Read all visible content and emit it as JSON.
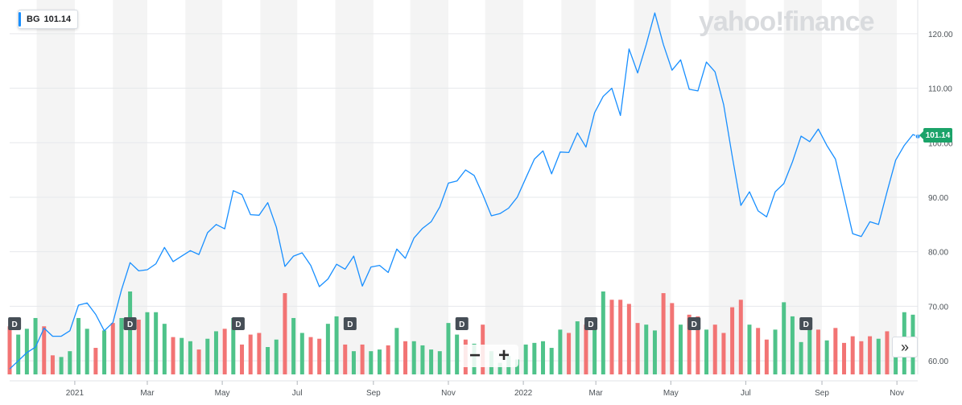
{
  "ticker": {
    "symbol": "BG",
    "price": "101.14"
  },
  "watermark": "yahoo!finance",
  "controls": {
    "zoom_out": "−",
    "zoom_in": "+",
    "expand": "»"
  },
  "colors": {
    "line": "#188fff",
    "volume_up": "#4fc38a",
    "volume_down": "#f27474",
    "price_tag": "#1ba369",
    "shade": "#f4f4f4"
  },
  "chart_data": {
    "type": "line",
    "title": "",
    "xlabel": "",
    "ylabel": "",
    "ylim": [
      57.5,
      125
    ],
    "y_ticks": [
      "60.00",
      "70.00",
      "80.00",
      "90.00",
      "100.00",
      "110.00",
      "120.00"
    ],
    "y_tick_values": [
      60,
      70,
      80,
      90,
      100,
      110,
      120
    ],
    "x_ticks": [
      {
        "label": "2021",
        "date": "2021-01-01"
      },
      {
        "label": "Mar",
        "date": "2021-03-01"
      },
      {
        "label": "May",
        "date": "2021-05-01"
      },
      {
        "label": "Jul",
        "date": "2021-07-01"
      },
      {
        "label": "Sep",
        "date": "2021-09-01"
      },
      {
        "label": "Nov",
        "date": "2021-11-01"
      },
      {
        "label": "2022",
        "date": "2022-01-01"
      },
      {
        "label": "Mar",
        "date": "2022-03-01"
      },
      {
        "label": "May",
        "date": "2022-05-01"
      },
      {
        "label": "Jul",
        "date": "2022-07-01"
      },
      {
        "label": "Sep",
        "date": "2022-09-01"
      },
      {
        "label": "Nov",
        "date": "2022-11-01"
      }
    ],
    "x_range": [
      "2020-11-09",
      "2022-11-14"
    ],
    "series": [
      {
        "values": [
          [
            "2020-11-09",
            58.5
          ],
          [
            "2020-11-16",
            60.0
          ],
          [
            "2020-11-23",
            61.5
          ],
          [
            "2020-11-30",
            62.5
          ],
          [
            "2020-12-07",
            66.0
          ],
          [
            "2020-12-14",
            64.5
          ],
          [
            "2020-12-21",
            64.5
          ],
          [
            "2020-12-28",
            65.5
          ],
          [
            "2021-01-04",
            70.2
          ],
          [
            "2021-01-11",
            70.6
          ],
          [
            "2021-01-18",
            68.5
          ],
          [
            "2021-01-25",
            65.5
          ],
          [
            "2021-02-01",
            67.0
          ],
          [
            "2021-02-08",
            73.0
          ],
          [
            "2021-02-15",
            78.0
          ],
          [
            "2021-02-22",
            76.5
          ],
          [
            "2021-03-01",
            76.7
          ],
          [
            "2021-03-08",
            77.8
          ],
          [
            "2021-03-15",
            80.8
          ],
          [
            "2021-03-22",
            78.2
          ],
          [
            "2021-03-29",
            79.2
          ],
          [
            "2021-04-05",
            80.2
          ],
          [
            "2021-04-12",
            79.5
          ],
          [
            "2021-04-19",
            83.5
          ],
          [
            "2021-04-26",
            85.0
          ],
          [
            "2021-05-03",
            84.2
          ],
          [
            "2021-05-10",
            91.2
          ],
          [
            "2021-05-17",
            90.5
          ],
          [
            "2021-05-24",
            86.8
          ],
          [
            "2021-05-31",
            86.7
          ],
          [
            "2021-06-07",
            89.0
          ],
          [
            "2021-06-14",
            84.5
          ],
          [
            "2021-06-21",
            77.3
          ],
          [
            "2021-06-28",
            79.2
          ],
          [
            "2021-07-05",
            79.8
          ],
          [
            "2021-07-12",
            77.5
          ],
          [
            "2021-07-19",
            73.6
          ],
          [
            "2021-07-26",
            75.0
          ],
          [
            "2021-08-02",
            77.7
          ],
          [
            "2021-08-09",
            76.8
          ],
          [
            "2021-08-16",
            79.2
          ],
          [
            "2021-08-23",
            73.7
          ],
          [
            "2021-08-30",
            77.2
          ],
          [
            "2021-09-06",
            77.5
          ],
          [
            "2021-09-13",
            76.2
          ],
          [
            "2021-09-20",
            80.5
          ],
          [
            "2021-09-27",
            78.8
          ],
          [
            "2021-10-04",
            82.5
          ],
          [
            "2021-10-11",
            84.3
          ],
          [
            "2021-10-18",
            85.5
          ],
          [
            "2021-10-25",
            88.2
          ],
          [
            "2021-11-01",
            92.6
          ],
          [
            "2021-11-08",
            93.0
          ],
          [
            "2021-11-15",
            95.0
          ],
          [
            "2021-11-22",
            94.0
          ],
          [
            "2021-11-29",
            90.5
          ],
          [
            "2021-12-06",
            86.6
          ],
          [
            "2021-12-13",
            87.0
          ],
          [
            "2021-12-20",
            88.0
          ],
          [
            "2021-12-27",
            90.0
          ],
          [
            "2022-01-03",
            93.5
          ],
          [
            "2022-01-10",
            97.0
          ],
          [
            "2022-01-17",
            98.5
          ],
          [
            "2022-01-24",
            94.3
          ],
          [
            "2022-01-31",
            98.3
          ],
          [
            "2022-02-07",
            98.2
          ],
          [
            "2022-02-14",
            101.8
          ],
          [
            "2022-02-21",
            99.2
          ],
          [
            "2022-02-28",
            105.5
          ],
          [
            "2022-03-07",
            108.5
          ],
          [
            "2022-03-14",
            110.0
          ],
          [
            "2022-03-21",
            105.0
          ],
          [
            "2022-03-28",
            117.2
          ],
          [
            "2022-04-04",
            112.8
          ],
          [
            "2022-04-11",
            118.0
          ],
          [
            "2022-04-18",
            123.8
          ],
          [
            "2022-04-25",
            118.0
          ],
          [
            "2022-05-02",
            113.3
          ],
          [
            "2022-05-09",
            115.2
          ],
          [
            "2022-05-16",
            109.8
          ],
          [
            "2022-05-23",
            109.5
          ],
          [
            "2022-05-30",
            114.8
          ],
          [
            "2022-06-06",
            113.0
          ],
          [
            "2022-06-13",
            107.0
          ],
          [
            "2022-06-20",
            97.5
          ],
          [
            "2022-06-27",
            88.5
          ],
          [
            "2022-07-04",
            91.0
          ],
          [
            "2022-07-11",
            87.5
          ],
          [
            "2022-07-18",
            86.4
          ],
          [
            "2022-07-25",
            91.0
          ],
          [
            "2022-08-01",
            92.5
          ],
          [
            "2022-08-08",
            96.5
          ],
          [
            "2022-08-15",
            101.2
          ],
          [
            "2022-08-22",
            100.2
          ],
          [
            "2022-08-29",
            102.5
          ],
          [
            "2022-09-05",
            99.5
          ],
          [
            "2022-09-12",
            97.0
          ],
          [
            "2022-09-19",
            90.2
          ],
          [
            "2022-09-26",
            83.3
          ],
          [
            "2022-10-03",
            82.8
          ],
          [
            "2022-10-10",
            85.5
          ],
          [
            "2022-10-17",
            85.0
          ],
          [
            "2022-10-24",
            91.0
          ],
          [
            "2022-10-31",
            96.8
          ],
          [
            "2022-11-07",
            99.5
          ],
          [
            "2022-11-14",
            101.5
          ],
          [
            "2022-11-18",
            101.14
          ]
        ]
      }
    ],
    "volume": {
      "scale": [
        0,
        100
      ],
      "bars": [
        [
          "2020-11-09",
          58,
          "down"
        ],
        [
          "2020-11-16",
          48,
          "up"
        ],
        [
          "2020-11-23",
          55,
          "up"
        ],
        [
          "2020-11-30",
          68,
          "up"
        ],
        [
          "2020-12-07",
          58,
          "down"
        ],
        [
          "2020-12-14",
          23,
          "down"
        ],
        [
          "2020-12-21",
          21,
          "up"
        ],
        [
          "2020-12-28",
          28,
          "up"
        ],
        [
          "2021-01-04",
          68,
          "up"
        ],
        [
          "2021-01-11",
          55,
          "up"
        ],
        [
          "2021-01-18",
          32,
          "down"
        ],
        [
          "2021-01-25",
          53,
          "up"
        ],
        [
          "2021-02-01",
          62,
          "down"
        ],
        [
          "2021-02-08",
          68,
          "up"
        ],
        [
          "2021-02-15",
          100,
          "up"
        ],
        [
          "2021-02-22",
          66,
          "down"
        ],
        [
          "2021-03-01",
          75,
          "up"
        ],
        [
          "2021-03-08",
          75,
          "up"
        ],
        [
          "2021-03-15",
          61,
          "up"
        ],
        [
          "2021-03-22",
          45,
          "down"
        ],
        [
          "2021-03-29",
          44,
          "up"
        ],
        [
          "2021-04-05",
          40,
          "up"
        ],
        [
          "2021-04-12",
          30,
          "down"
        ],
        [
          "2021-04-19",
          43,
          "up"
        ],
        [
          "2021-04-26",
          52,
          "up"
        ],
        [
          "2021-05-03",
          55,
          "down"
        ],
        [
          "2021-05-10",
          68,
          "up"
        ],
        [
          "2021-05-17",
          36,
          "down"
        ],
        [
          "2021-05-24",
          48,
          "down"
        ],
        [
          "2021-05-31",
          50,
          "down"
        ],
        [
          "2021-06-07",
          33,
          "up"
        ],
        [
          "2021-06-14",
          42,
          "up"
        ],
        [
          "2021-06-21",
          98,
          "down"
        ],
        [
          "2021-06-28",
          68,
          "up"
        ],
        [
          "2021-07-05",
          50,
          "up"
        ],
        [
          "2021-07-12",
          45,
          "down"
        ],
        [
          "2021-07-19",
          43,
          "down"
        ],
        [
          "2021-07-26",
          61,
          "up"
        ],
        [
          "2021-08-02",
          70,
          "up"
        ],
        [
          "2021-08-09",
          36,
          "down"
        ],
        [
          "2021-08-16",
          28,
          "up"
        ],
        [
          "2021-08-23",
          36,
          "down"
        ],
        [
          "2021-08-30",
          28,
          "up"
        ],
        [
          "2021-09-06",
          30,
          "up"
        ],
        [
          "2021-09-13",
          35,
          "down"
        ],
        [
          "2021-09-20",
          56,
          "up"
        ],
        [
          "2021-09-27",
          40,
          "down"
        ],
        [
          "2021-10-04",
          40,
          "up"
        ],
        [
          "2021-10-11",
          35,
          "up"
        ],
        [
          "2021-10-18",
          30,
          "up"
        ],
        [
          "2021-10-25",
          28,
          "up"
        ],
        [
          "2021-11-01",
          62,
          "up"
        ],
        [
          "2021-11-08",
          48,
          "up"
        ],
        [
          "2021-11-15",
          42,
          "down"
        ],
        [
          "2021-11-22",
          37,
          "up"
        ],
        [
          "2021-11-29",
          60,
          "down"
        ],
        [
          "2021-12-06",
          28,
          "up"
        ],
        [
          "2021-12-13",
          14,
          "up"
        ],
        [
          "2021-12-20",
          22,
          "up"
        ],
        [
          "2021-12-27",
          18,
          "up"
        ],
        [
          "2022-01-03",
          36,
          "up"
        ],
        [
          "2022-01-10",
          38,
          "up"
        ],
        [
          "2022-01-17",
          40,
          "up"
        ],
        [
          "2022-01-24",
          32,
          "up"
        ],
        [
          "2022-01-31",
          54,
          "up"
        ],
        [
          "2022-02-07",
          50,
          "down"
        ],
        [
          "2022-02-14",
          64,
          "up"
        ],
        [
          "2022-02-21",
          60,
          "down"
        ],
        [
          "2022-02-28",
          58,
          "up"
        ],
        [
          "2022-03-07",
          100,
          "up"
        ],
        [
          "2022-03-14",
          90,
          "down"
        ],
        [
          "2022-03-21",
          90,
          "down"
        ],
        [
          "2022-03-28",
          85,
          "down"
        ],
        [
          "2022-04-04",
          62,
          "down"
        ],
        [
          "2022-04-11",
          60,
          "up"
        ],
        [
          "2022-04-18",
          53,
          "up"
        ],
        [
          "2022-04-25",
          98,
          "down"
        ],
        [
          "2022-05-02",
          86,
          "down"
        ],
        [
          "2022-05-09",
          60,
          "up"
        ],
        [
          "2022-05-16",
          72,
          "down"
        ],
        [
          "2022-05-23",
          70,
          "down"
        ],
        [
          "2022-05-30",
          54,
          "up"
        ],
        [
          "2022-06-06",
          60,
          "down"
        ],
        [
          "2022-06-13",
          50,
          "down"
        ],
        [
          "2022-06-20",
          81,
          "down"
        ],
        [
          "2022-06-27",
          90,
          "down"
        ],
        [
          "2022-07-04",
          60,
          "up"
        ],
        [
          "2022-07-11",
          56,
          "down"
        ],
        [
          "2022-07-18",
          42,
          "down"
        ],
        [
          "2022-07-25",
          54,
          "up"
        ],
        [
          "2022-08-01",
          87,
          "up"
        ],
        [
          "2022-08-08",
          70,
          "up"
        ],
        [
          "2022-08-15",
          39,
          "up"
        ],
        [
          "2022-08-22",
          64,
          "up"
        ],
        [
          "2022-08-29",
          54,
          "down"
        ],
        [
          "2022-09-05",
          41,
          "up"
        ],
        [
          "2022-09-12",
          56,
          "down"
        ],
        [
          "2022-09-19",
          38,
          "down"
        ],
        [
          "2022-09-26",
          46,
          "down"
        ],
        [
          "2022-10-03",
          40,
          "down"
        ],
        [
          "2022-10-10",
          46,
          "down"
        ],
        [
          "2022-10-17",
          43,
          "up"
        ],
        [
          "2022-10-24",
          52,
          "down"
        ],
        [
          "2022-10-31",
          42,
          "up"
        ],
        [
          "2022-11-07",
          75,
          "up"
        ],
        [
          "2022-11-14",
          72,
          "up"
        ]
      ]
    },
    "dividend_markers": {
      "label": "D",
      "dates": [
        "2020-11-13",
        "2021-02-15",
        "2021-05-14",
        "2021-08-13",
        "2021-11-12",
        "2022-02-25",
        "2022-05-20",
        "2022-08-19"
      ]
    },
    "grid": true,
    "legend": "none"
  }
}
